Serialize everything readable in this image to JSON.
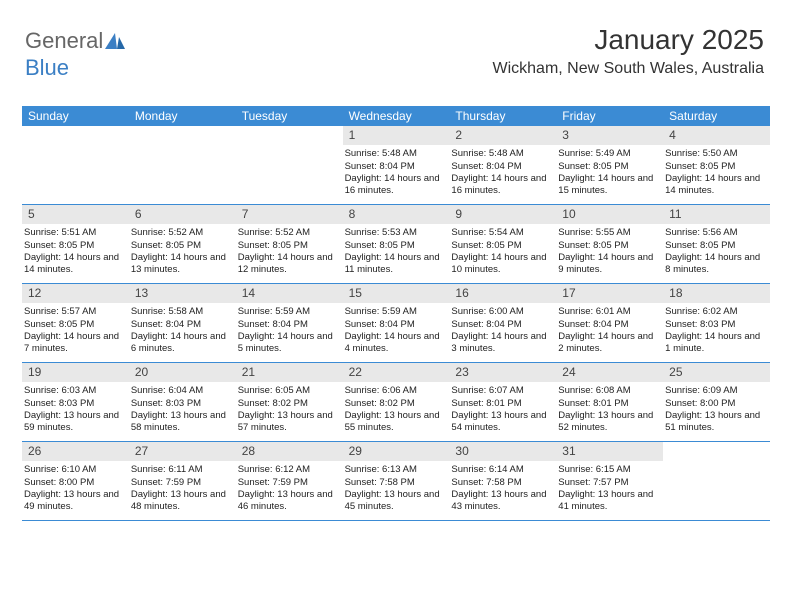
{
  "logo": {
    "text1": "General",
    "text2": "Blue"
  },
  "title": "January 2025",
  "location": "Wickham, New South Wales, Australia",
  "colors": {
    "header_bg": "#3b8bd4",
    "header_text": "#ffffff",
    "daynum_bg": "#e8e8e8",
    "divider": "#3b8bd4",
    "text": "#222222",
    "logo_gray": "#666666",
    "logo_blue": "#3b7fc4"
  },
  "day_labels": [
    "Sunday",
    "Monday",
    "Tuesday",
    "Wednesday",
    "Thursday",
    "Friday",
    "Saturday"
  ],
  "weeks": [
    [
      {
        "n": "",
        "sr": "",
        "ss": "",
        "dl": ""
      },
      {
        "n": "",
        "sr": "",
        "ss": "",
        "dl": ""
      },
      {
        "n": "",
        "sr": "",
        "ss": "",
        "dl": ""
      },
      {
        "n": "1",
        "sr": "5:48 AM",
        "ss": "8:04 PM",
        "dl": "14 hours and 16 minutes."
      },
      {
        "n": "2",
        "sr": "5:48 AM",
        "ss": "8:04 PM",
        "dl": "14 hours and 16 minutes."
      },
      {
        "n": "3",
        "sr": "5:49 AM",
        "ss": "8:05 PM",
        "dl": "14 hours and 15 minutes."
      },
      {
        "n": "4",
        "sr": "5:50 AM",
        "ss": "8:05 PM",
        "dl": "14 hours and 14 minutes."
      }
    ],
    [
      {
        "n": "5",
        "sr": "5:51 AM",
        "ss": "8:05 PM",
        "dl": "14 hours and 14 minutes."
      },
      {
        "n": "6",
        "sr": "5:52 AM",
        "ss": "8:05 PM",
        "dl": "14 hours and 13 minutes."
      },
      {
        "n": "7",
        "sr": "5:52 AM",
        "ss": "8:05 PM",
        "dl": "14 hours and 12 minutes."
      },
      {
        "n": "8",
        "sr": "5:53 AM",
        "ss": "8:05 PM",
        "dl": "14 hours and 11 minutes."
      },
      {
        "n": "9",
        "sr": "5:54 AM",
        "ss": "8:05 PM",
        "dl": "14 hours and 10 minutes."
      },
      {
        "n": "10",
        "sr": "5:55 AM",
        "ss": "8:05 PM",
        "dl": "14 hours and 9 minutes."
      },
      {
        "n": "11",
        "sr": "5:56 AM",
        "ss": "8:05 PM",
        "dl": "14 hours and 8 minutes."
      }
    ],
    [
      {
        "n": "12",
        "sr": "5:57 AM",
        "ss": "8:05 PM",
        "dl": "14 hours and 7 minutes."
      },
      {
        "n": "13",
        "sr": "5:58 AM",
        "ss": "8:04 PM",
        "dl": "14 hours and 6 minutes."
      },
      {
        "n": "14",
        "sr": "5:59 AM",
        "ss": "8:04 PM",
        "dl": "14 hours and 5 minutes."
      },
      {
        "n": "15",
        "sr": "5:59 AM",
        "ss": "8:04 PM",
        "dl": "14 hours and 4 minutes."
      },
      {
        "n": "16",
        "sr": "6:00 AM",
        "ss": "8:04 PM",
        "dl": "14 hours and 3 minutes."
      },
      {
        "n": "17",
        "sr": "6:01 AM",
        "ss": "8:04 PM",
        "dl": "14 hours and 2 minutes."
      },
      {
        "n": "18",
        "sr": "6:02 AM",
        "ss": "8:03 PM",
        "dl": "14 hours and 1 minute."
      }
    ],
    [
      {
        "n": "19",
        "sr": "6:03 AM",
        "ss": "8:03 PM",
        "dl": "13 hours and 59 minutes."
      },
      {
        "n": "20",
        "sr": "6:04 AM",
        "ss": "8:03 PM",
        "dl": "13 hours and 58 minutes."
      },
      {
        "n": "21",
        "sr": "6:05 AM",
        "ss": "8:02 PM",
        "dl": "13 hours and 57 minutes."
      },
      {
        "n": "22",
        "sr": "6:06 AM",
        "ss": "8:02 PM",
        "dl": "13 hours and 55 minutes."
      },
      {
        "n": "23",
        "sr": "6:07 AM",
        "ss": "8:01 PM",
        "dl": "13 hours and 54 minutes."
      },
      {
        "n": "24",
        "sr": "6:08 AM",
        "ss": "8:01 PM",
        "dl": "13 hours and 52 minutes."
      },
      {
        "n": "25",
        "sr": "6:09 AM",
        "ss": "8:00 PM",
        "dl": "13 hours and 51 minutes."
      }
    ],
    [
      {
        "n": "26",
        "sr": "6:10 AM",
        "ss": "8:00 PM",
        "dl": "13 hours and 49 minutes."
      },
      {
        "n": "27",
        "sr": "6:11 AM",
        "ss": "7:59 PM",
        "dl": "13 hours and 48 minutes."
      },
      {
        "n": "28",
        "sr": "6:12 AM",
        "ss": "7:59 PM",
        "dl": "13 hours and 46 minutes."
      },
      {
        "n": "29",
        "sr": "6:13 AM",
        "ss": "7:58 PM",
        "dl": "13 hours and 45 minutes."
      },
      {
        "n": "30",
        "sr": "6:14 AM",
        "ss": "7:58 PM",
        "dl": "13 hours and 43 minutes."
      },
      {
        "n": "31",
        "sr": "6:15 AM",
        "ss": "7:57 PM",
        "dl": "13 hours and 41 minutes."
      },
      {
        "n": "",
        "sr": "",
        "ss": "",
        "dl": ""
      }
    ]
  ],
  "labels": {
    "sunrise": "Sunrise:",
    "sunset": "Sunset:",
    "daylight": "Daylight:"
  }
}
